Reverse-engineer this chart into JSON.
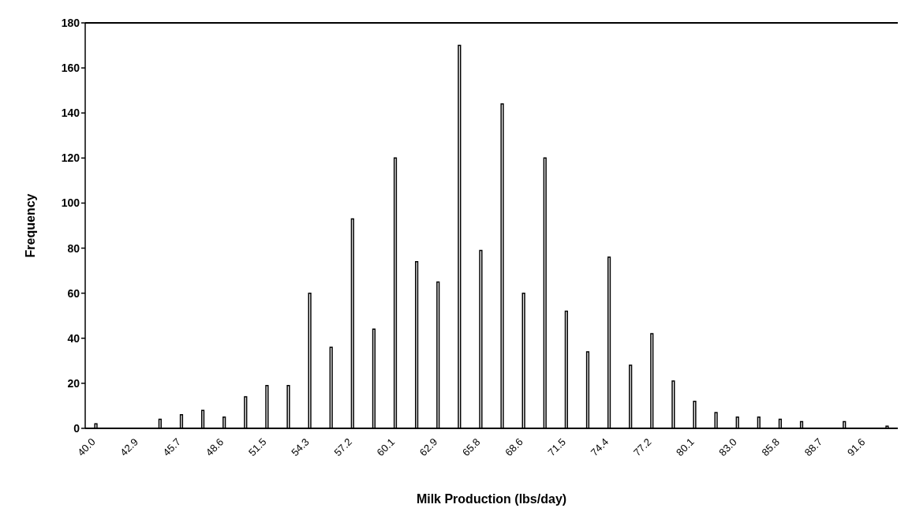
{
  "chart_data": {
    "type": "bar",
    "xlabel": "Milk Production (lbs/day)",
    "ylabel": "Frequency",
    "categories": [
      "40.0",
      null,
      "42.9",
      null,
      "45.7",
      null,
      "48.6",
      null,
      "51.5",
      null,
      "54.3",
      null,
      "57.2",
      null,
      "60.1",
      null,
      "62.9",
      null,
      "65.8",
      null,
      "68.6",
      null,
      "71.5",
      null,
      "74.4",
      null,
      "77.2",
      null,
      "80.1",
      null,
      "83.0",
      null,
      "85.8",
      null,
      "88.7",
      null,
      "91.6",
      null
    ],
    "values": [
      2,
      0,
      0,
      4,
      6,
      8,
      5,
      14,
      19,
      19,
      60,
      36,
      93,
      44,
      120,
      74,
      65,
      170,
      79,
      144,
      60,
      120,
      52,
      34,
      76,
      28,
      42,
      21,
      12,
      7,
      5,
      5,
      4,
      3,
      0,
      3,
      0,
      1
    ],
    "color": "#ffffff",
    "ylim": [
      0,
      180
    ],
    "yticks": [
      0,
      20,
      40,
      60,
      80,
      100,
      120,
      140,
      160,
      180
    ],
    "grid": false,
    "legend": false
  }
}
